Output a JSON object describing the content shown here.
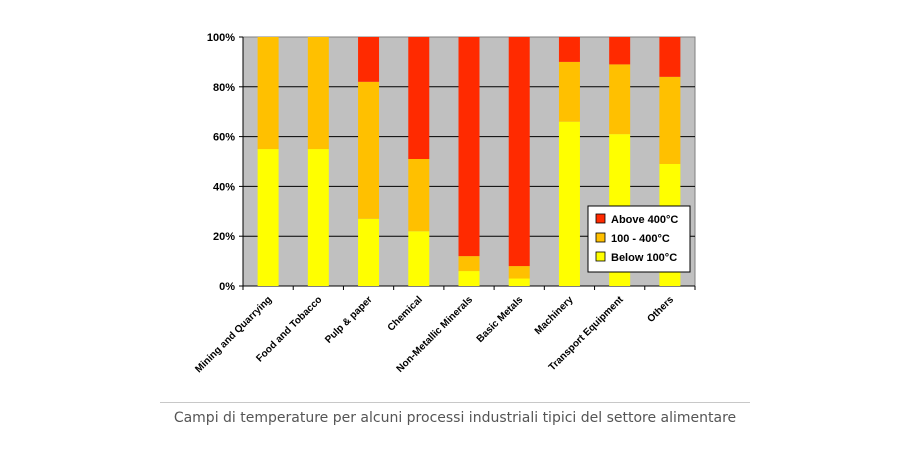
{
  "chart_data": {
    "type": "bar",
    "stacked": true,
    "percent": true,
    "categories": [
      "Mining and Quarrying",
      "Food and Tobacco",
      "Pulp & paper",
      "Chemical",
      "Non-Metallic Minerals",
      "Basic Metals",
      "Machinery",
      "Transport Equipment",
      "Others"
    ],
    "series": [
      {
        "name": "Below 100°C",
        "color": "#ffff00",
        "values": [
          55,
          55,
          27,
          22,
          6,
          3,
          66,
          61,
          49
        ]
      },
      {
        "name": "100 - 400°C",
        "color": "#ffc000",
        "values": [
          45,
          45,
          55,
          29,
          6,
          5,
          24,
          28,
          35
        ]
      },
      {
        "name": "Above 400°C",
        "color": "#ff2a00",
        "values": [
          0,
          0,
          18,
          49,
          88,
          92,
          10,
          11,
          16
        ]
      }
    ],
    "legend_order": [
      "Above 400°C",
      "100 - 400°C",
      "Below 100°C"
    ],
    "legend_position": "bottom-right",
    "y_ticks": [
      "0%",
      "20%",
      "40%",
      "60%",
      "80%",
      "100%"
    ],
    "ylim": [
      0,
      100
    ],
    "grid": true,
    "plot_background": "#c0c0c0",
    "title": "",
    "xlabel": "",
    "ylabel": ""
  },
  "caption": "Campi di temperature per alcuni processi industriali tipici del settore alimentare"
}
